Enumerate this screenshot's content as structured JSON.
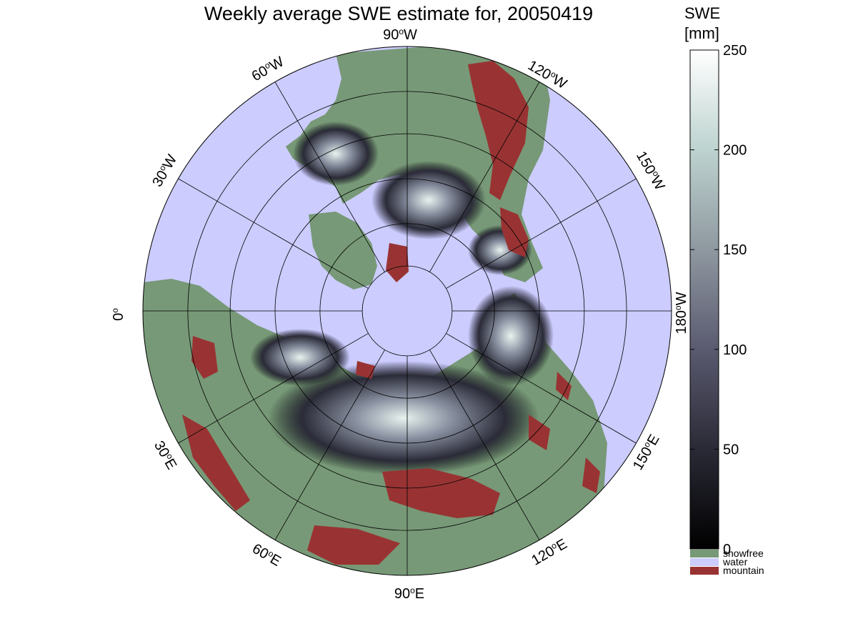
{
  "title": "Weekly average SWE estimate for, 20050419",
  "map": {
    "projection": "north-polar-stereographic",
    "longitude_labels": {
      "90W": {
        "lon": "90",
        "hem": "W"
      },
      "120W": {
        "lon": "120",
        "hem": "W"
      },
      "150W": {
        "lon": "150",
        "hem": "W"
      },
      "180W": {
        "lon": "180",
        "hem": "W"
      },
      "150E": {
        "lon": "150",
        "hem": "E"
      },
      "120E": {
        "lon": "120",
        "hem": "E"
      },
      "90E": {
        "lon": "90",
        "hem": "E"
      },
      "60E": {
        "lon": "60",
        "hem": "E"
      },
      "30E": {
        "lon": "30",
        "hem": "E"
      },
      "0": {
        "lon": "0",
        "hem": ""
      },
      "30W": {
        "lon": "30",
        "hem": "W"
      },
      "60W": {
        "lon": "60",
        "hem": "W"
      }
    },
    "degree_symbol": "o",
    "colors": {
      "water": "#ccccff",
      "snowfree": "#779977",
      "mountain": "#993333",
      "grid": "#000000"
    }
  },
  "colorbar": {
    "label_line1": "SWE",
    "label_line2": "[mm]",
    "ticks": [
      "0",
      "50",
      "100",
      "150",
      "200",
      "250"
    ],
    "min": 0,
    "max": 250,
    "colors": [
      "#000000",
      "#2a2a36",
      "#5a5a70",
      "#8f98a0",
      "#bdd3cf",
      "#ffffff"
    ]
  },
  "legend": [
    {
      "label": "snowfree",
      "color": "#779977"
    },
    {
      "label": "water",
      "color": "#ccccff"
    },
    {
      "label": "mountain",
      "color": "#993333"
    }
  ]
}
